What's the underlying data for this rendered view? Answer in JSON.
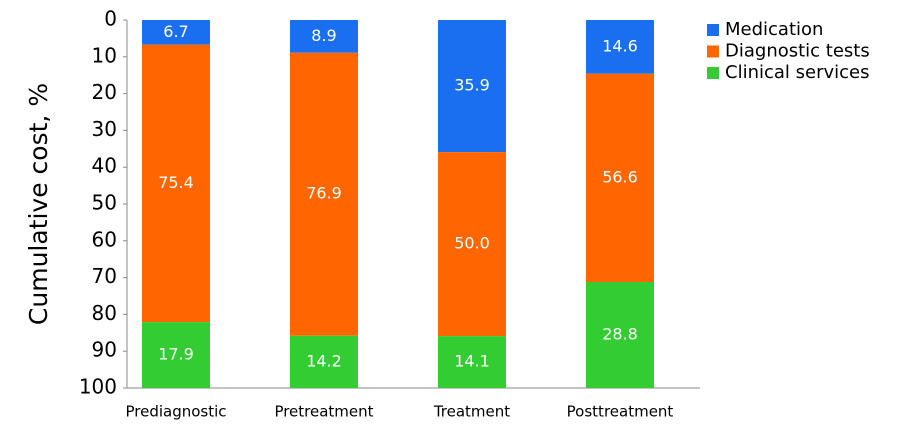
{
  "chart_data": {
    "type": "stacked_bar",
    "y_label": "Cumulative cost, %",
    "categories": [
      "Prediagnostic",
      "Pretreatment",
      "Treatment",
      "Posttreatment"
    ],
    "series": [
      {
        "name": "Medication",
        "color": "#1a6ef0",
        "values": [
          6.7,
          8.9,
          35.9,
          14.6
        ],
        "value_labels": [
          "6.7",
          "8.9",
          "35.9",
          "14.6"
        ]
      },
      {
        "name": "Diagnostic tests",
        "color": "#ff6600",
        "values": [
          75.4,
          76.9,
          50.0,
          56.6
        ],
        "value_labels": [
          "75.4",
          "76.9",
          "50.0",
          "56.6"
        ]
      },
      {
        "name": "Clinical services",
        "color": "#33cc33",
        "values": [
          17.9,
          14.2,
          14.1,
          28.8
        ],
        "value_labels": [
          "17.9",
          "14.2",
          "14.1",
          "28.8"
        ]
      }
    ],
    "ylim": [
      0,
      100
    ],
    "y_inverted": true,
    "yticks": [
      0,
      10,
      20,
      30,
      40,
      50,
      60,
      70,
      80,
      90,
      100
    ],
    "grid": false,
    "legend": "top-right"
  }
}
